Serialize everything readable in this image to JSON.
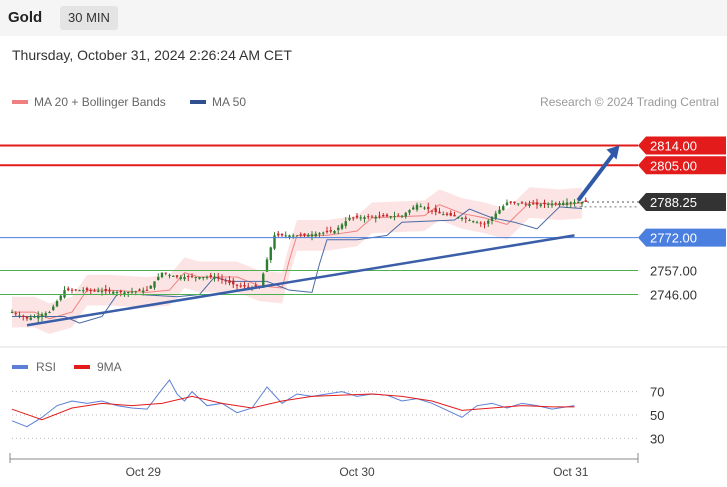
{
  "header": {
    "title": "Gold",
    "timeframe": "30 MIN"
  },
  "timestamp": "Thursday, October 31, 2024 2:26:24 AM CET",
  "legend": {
    "bb_label": "MA 20 + Bollinger Bands",
    "ma50_label": "MA 50",
    "rsi_label": "RSI",
    "rsi_ma_label": "9MA",
    "credit": "Research © 2024 Trading Central"
  },
  "colors": {
    "bb": "#f08080",
    "ma50": "#2f4f8f",
    "resistance": "#e31b1b",
    "pivot": "#4a7fe0",
    "support": "#4caf50",
    "current": "#333333",
    "up": "#2e7d32",
    "down": "#c62828",
    "rsi": "#5b7fd6",
    "rsi_ma": "#e31b1b"
  },
  "chart_data": [
    {
      "type": "candlestick",
      "ylim": [
        2728,
        2822
      ],
      "x_categories": [
        "Oct 29",
        "Oct 30",
        "Oct 31"
      ],
      "levels": [
        {
          "label": "2814.00",
          "value": 2814.0,
          "kind": "resistance"
        },
        {
          "label": "2805.00",
          "value": 2805.0,
          "kind": "resistance"
        },
        {
          "label": "2788.25",
          "value": 2788.25,
          "kind": "current"
        },
        {
          "label": "2772.00",
          "value": 2772.0,
          "kind": "pivot"
        },
        {
          "label": "2757.00",
          "value": 2757.0,
          "kind": "support"
        },
        {
          "label": "2746.00",
          "value": 2746.0,
          "kind": "support"
        }
      ],
      "trendline": {
        "from": {
          "bar": 4,
          "value": 2732
        },
        "to": {
          "bar": 150,
          "value": 2773
        }
      },
      "target_arrow": {
        "from": {
          "bar": 151,
          "value": 2789
        },
        "to": {
          "bar": 162,
          "value": 2814
        }
      },
      "price_points": [
        [
          0,
          2738
        ],
        [
          4,
          2735
        ],
        [
          10,
          2738
        ],
        [
          12,
          2743
        ],
        [
          14,
          2748
        ],
        [
          20,
          2748
        ],
        [
          30,
          2747
        ],
        [
          36,
          2748
        ],
        [
          40,
          2756
        ],
        [
          44,
          2754
        ],
        [
          54,
          2754
        ],
        [
          60,
          2750
        ],
        [
          66,
          2749
        ],
        [
          68,
          2762
        ],
        [
          70,
          2773
        ],
        [
          78,
          2773
        ],
        [
          86,
          2775
        ],
        [
          90,
          2781
        ],
        [
          104,
          2782
        ],
        [
          108,
          2787
        ],
        [
          114,
          2783
        ],
        [
          120,
          2781
        ],
        [
          126,
          2778
        ],
        [
          132,
          2788
        ],
        [
          140,
          2787
        ],
        [
          148,
          2788
        ],
        [
          152,
          2788.25
        ]
      ]
    },
    {
      "type": "line",
      "name": "RSI",
      "ylim": [
        20,
        80
      ],
      "yticks": [
        "70",
        "50",
        "30"
      ],
      "series": [
        {
          "name": "RSI",
          "points": [
            [
              0,
              45
            ],
            [
              4,
              40
            ],
            [
              8,
              48
            ],
            [
              12,
              58
            ],
            [
              16,
              62
            ],
            [
              20,
              60
            ],
            [
              24,
              62
            ],
            [
              28,
              58
            ],
            [
              32,
              56
            ],
            [
              36,
              55
            ],
            [
              40,
              72
            ],
            [
              42,
              80
            ],
            [
              44,
              68
            ],
            [
              46,
              62
            ],
            [
              48,
              70
            ],
            [
              52,
              58
            ],
            [
              56,
              60
            ],
            [
              60,
              52
            ],
            [
              64,
              56
            ],
            [
              68,
              74
            ],
            [
              72,
              60
            ],
            [
              76,
              68
            ],
            [
              80,
              66
            ],
            [
              84,
              68
            ],
            [
              88,
              70
            ],
            [
              92,
              66
            ],
            [
              96,
              68
            ],
            [
              100,
              67
            ],
            [
              104,
              62
            ],
            [
              108,
              64
            ],
            [
              112,
              60
            ],
            [
              116,
              54
            ],
            [
              120,
              48
            ],
            [
              124,
              58
            ],
            [
              128,
              60
            ],
            [
              132,
              56
            ],
            [
              136,
              60
            ],
            [
              140,
              58
            ],
            [
              144,
              55
            ],
            [
              150,
              58
            ]
          ]
        },
        {
          "name": "9MA",
          "points": [
            [
              0,
              55
            ],
            [
              8,
              46
            ],
            [
              16,
              56
            ],
            [
              24,
              60
            ],
            [
              32,
              58
            ],
            [
              40,
              60
            ],
            [
              48,
              66
            ],
            [
              56,
              60
            ],
            [
              64,
              56
            ],
            [
              72,
              62
            ],
            [
              80,
              66
            ],
            [
              88,
              67
            ],
            [
              96,
              68
            ],
            [
              104,
              66
            ],
            [
              112,
              62
            ],
            [
              120,
              54
            ],
            [
              128,
              56
            ],
            [
              136,
              58
            ],
            [
              144,
              57
            ],
            [
              150,
              57
            ]
          ]
        }
      ]
    }
  ]
}
